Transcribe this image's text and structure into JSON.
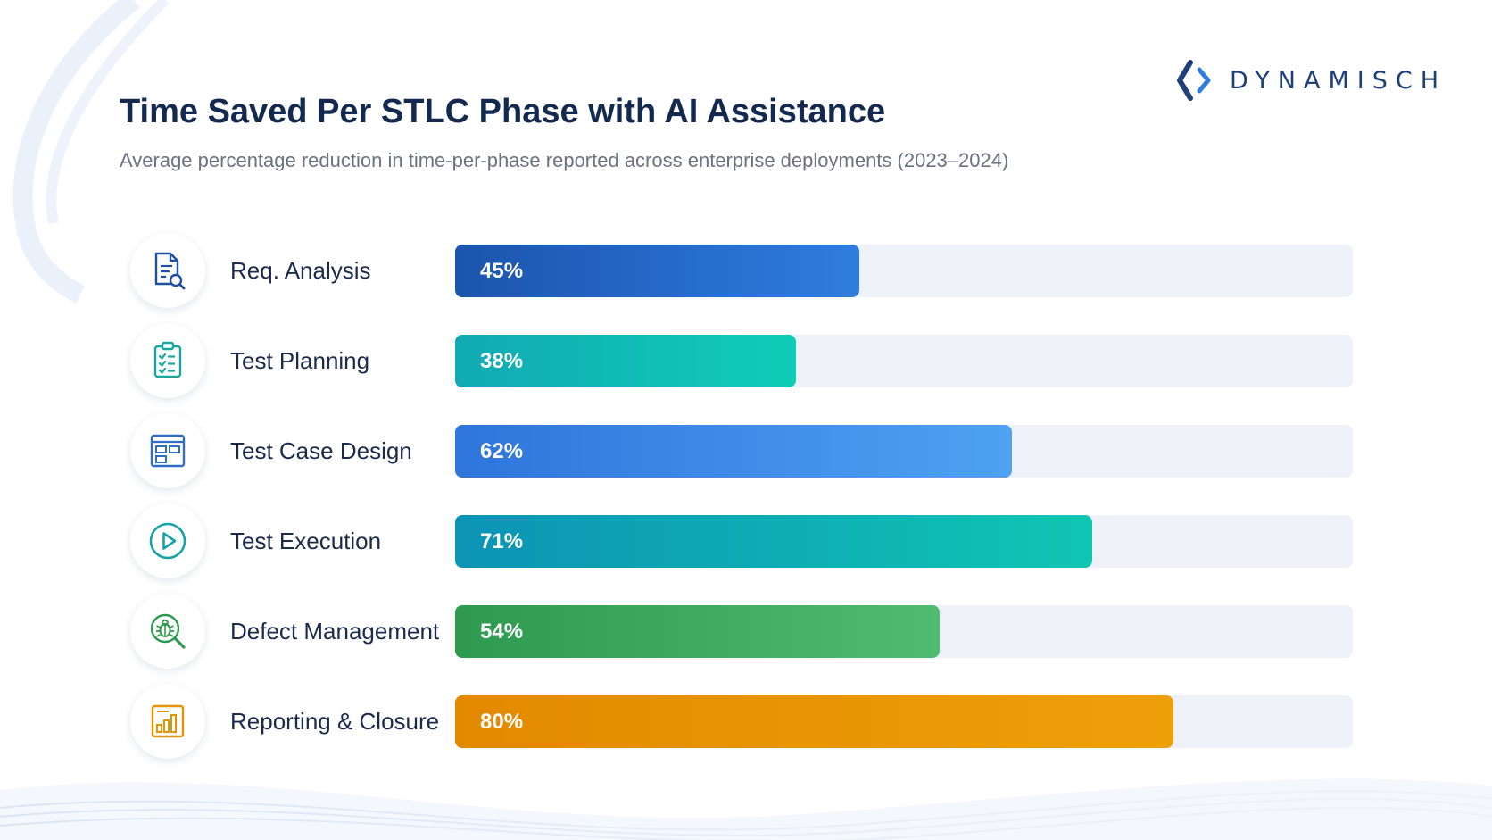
{
  "brand": {
    "name": "DYNAMISCH"
  },
  "colors": {
    "navy_text": "#13294f",
    "muted_text": "#6b7280",
    "track": "#eef2f8"
  },
  "chart_data": {
    "type": "bar",
    "orientation": "horizontal",
    "title": "Time Saved Per STLC Phase with AI Assistance",
    "subtitle": "Average percentage reduction in time-per-phase reported across enterprise deployments (2023–2024)",
    "xlim": [
      0,
      100
    ],
    "grid": false,
    "legend": "none",
    "categories": [
      "Req. Analysis",
      "Test Planning",
      "Test Case Design",
      "Test Execution",
      "Defect Management",
      "Reporting & Closure"
    ],
    "values": [
      45,
      38,
      62,
      71,
      54,
      80
    ],
    "value_labels": [
      "45%",
      "38%",
      "62%",
      "71%",
      "54%",
      "80%"
    ],
    "icons": [
      "document-search-icon",
      "clipboard-checklist-icon",
      "layout-grid-icon",
      "play-circle-icon",
      "bug-search-icon",
      "bar-chart-report-icon"
    ],
    "bar_gradients": [
      [
        "#1b54ad",
        "#2f7de0"
      ],
      [
        "#11aab4",
        "#0fcdb6"
      ],
      [
        "#2f75dc",
        "#4ea2f2"
      ],
      [
        "#0c93b5",
        "#10c6b3"
      ],
      [
        "#2e9a50",
        "#4fbc70"
      ],
      [
        "#e38900",
        "#eea009"
      ]
    ],
    "icon_colors": [
      "#1e4f9e",
      "#14a8a0",
      "#2f6ec4",
      "#15a2a8",
      "#2e9a50",
      "#e39400"
    ]
  }
}
